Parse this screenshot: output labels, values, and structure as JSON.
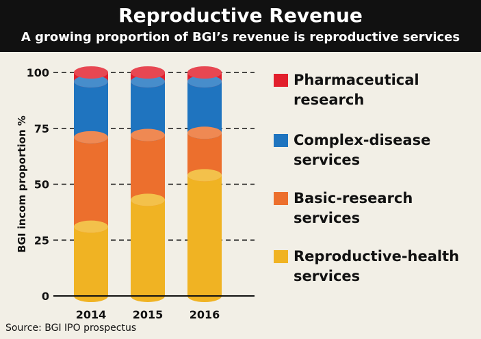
{
  "header": {
    "title": "Reproductive Revenue",
    "subtitle": "A growing proportion of BGI’s revenue is reproductive services"
  },
  "source": "Source: BGI IPO prospectus",
  "colors": {
    "background": "#f2efe6",
    "header": "#111111",
    "reproductive": "#f0b323",
    "basic": "#ec6f2d",
    "complex": "#1f74bf",
    "pharma": "#e21f2c"
  },
  "chart_data": {
    "type": "bar",
    "stacked": true,
    "title": "Reproductive Revenue",
    "subtitle": "A growing proportion of BGI’s revenue is reproductive services",
    "xlabel": "",
    "ylabel": "BGI incom proportion %",
    "ylim": [
      0,
      100
    ],
    "yticks": [
      0,
      25,
      50,
      75,
      100
    ],
    "grid": "dashed horizontal",
    "legend_position": "right",
    "categories": [
      "2014",
      "2015",
      "2016"
    ],
    "series": [
      {
        "name": "Reproductive-health services",
        "color": "#f0b323",
        "values": [
          31,
          43,
          54
        ]
      },
      {
        "name": "Basic-research services",
        "color": "#ec6f2d",
        "values": [
          40,
          29,
          19
        ]
      },
      {
        "name": "Complex-disease services",
        "color": "#1f74bf",
        "values": [
          25,
          24,
          23
        ]
      },
      {
        "name": "Pharmaceutical research",
        "color": "#e21f2c",
        "values": [
          4,
          4,
          4
        ]
      }
    ],
    "legend": [
      {
        "color": "#e21f2c",
        "lines": [
          "Pharmaceutical",
          "research"
        ]
      },
      {
        "color": "#1f74bf",
        "lines": [
          "Complex-disease",
          "services"
        ]
      },
      {
        "color": "#ec6f2d",
        "lines": [
          "Basic-research",
          "services"
        ]
      },
      {
        "color": "#f0b323",
        "lines": [
          "Reproductive-health",
          "services"
        ]
      }
    ]
  }
}
